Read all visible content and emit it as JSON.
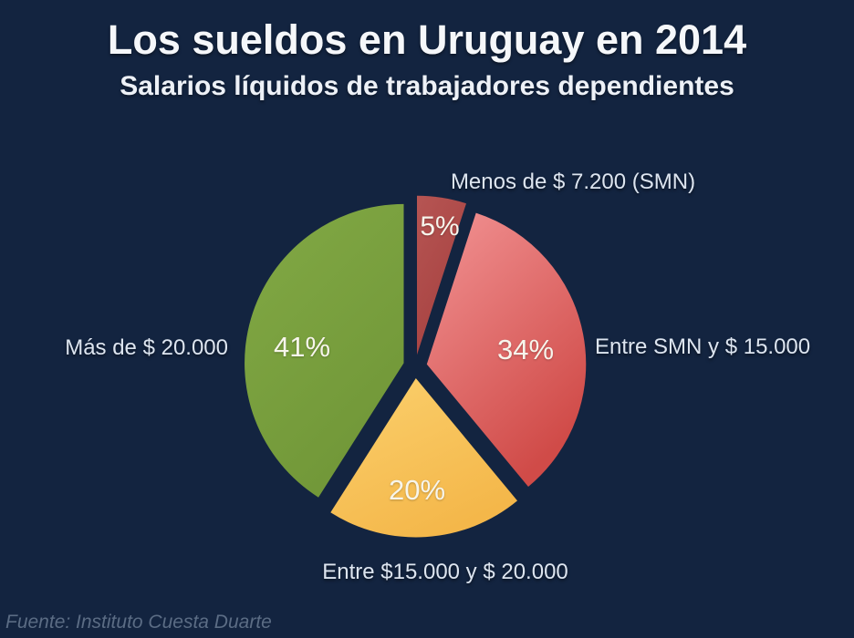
{
  "colors": {
    "background": "#132440",
    "title_text": "#f5f7fa",
    "label_text": "#dde5f0",
    "pct_text": "#f7f5ec",
    "source_text": "#5b6c84"
  },
  "chart_data": {
    "type": "pie",
    "title": "Los sueldos en Uruguay en 2014",
    "subtitle": "Salarios líquidos de trabajadores dependientes",
    "source": "Fuente: Instituto Cuesta Duarte",
    "exploded": true,
    "start_angle_deg_from_12": 0,
    "direction": "clockwise",
    "legend_position": "outside-labels",
    "slices": [
      {
        "label": "Menos de $ 7.200 (SMN)",
        "value": 5,
        "pct_label": "5%",
        "color": "#b65553",
        "color2": "#a64140"
      },
      {
        "label": "Entre SMN y $ 15.000",
        "value": 34,
        "pct_label": "34%",
        "color": "#f29394",
        "color2": "#d04b48"
      },
      {
        "label": "Entre $15.000 y $ 20.000",
        "value": 20,
        "pct_label": "20%",
        "color": "#fbd06d",
        "color2": "#f4b74a"
      },
      {
        "label": "Más de $ 20.000",
        "value": 41,
        "pct_label": "41%",
        "color": "#82a945",
        "color2": "#719738"
      }
    ]
  }
}
